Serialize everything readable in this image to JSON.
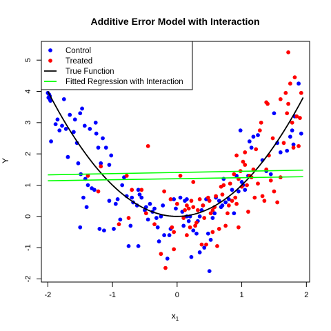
{
  "chart_data": {
    "type": "scatter",
    "title": "Additive Error Model with Interaction",
    "xlabel_main": "x",
    "xlabel_sub": "1",
    "ylabel": "Y",
    "xlim": [
      -2.1,
      2.05
    ],
    "ylim": [
      -2.1,
      5.6
    ],
    "xticks": [
      -2,
      -1,
      0,
      1,
      2
    ],
    "yticks": [
      -2,
      -1,
      0,
      1,
      2,
      3,
      4,
      5
    ],
    "grid": false,
    "legend_position": "top-left",
    "legend": [
      {
        "label": "Control",
        "kind": "point",
        "color": "#0000ff"
      },
      {
        "label": "Treated",
        "kind": "point",
        "color": "#ff0000"
      },
      {
        "label": "True Function",
        "kind": "line",
        "color": "#000000"
      },
      {
        "label": "Fitted Regression with Interaction",
        "kind": "line",
        "color": "#00ff00"
      }
    ],
    "series": [
      {
        "name": "Control",
        "color": "#0000ff",
        "points": [
          [
            -2.0,
            3.95
          ],
          [
            -1.99,
            3.8
          ],
          [
            -1.98,
            3.9
          ],
          [
            -1.97,
            3.75
          ],
          [
            -1.96,
            3.7
          ],
          [
            -1.97,
            3.85
          ],
          [
            -1.95,
            2.4
          ],
          [
            -1.88,
            2.95
          ],
          [
            -1.85,
            3.1
          ],
          [
            -1.82,
            2.75
          ],
          [
            -1.78,
            2.9
          ],
          [
            -1.75,
            3.75
          ],
          [
            -1.72,
            2.8
          ],
          [
            -1.69,
            1.9
          ],
          [
            -1.66,
            3.25
          ],
          [
            -1.6,
            2.7
          ],
          [
            -1.58,
            3.1
          ],
          [
            -1.55,
            2.35
          ],
          [
            -1.53,
            1.7
          ],
          [
            -1.5,
            -0.35
          ],
          [
            -1.5,
            3.3
          ],
          [
            -1.49,
            1.35
          ],
          [
            -1.47,
            3.45
          ],
          [
            -1.45,
            0.6
          ],
          [
            -1.43,
            2.9
          ],
          [
            -1.42,
            1.2
          ],
          [
            -1.4,
            0.3
          ],
          [
            -1.38,
            1.0
          ],
          [
            -1.35,
            2.8
          ],
          [
            -1.32,
            0.9
          ],
          [
            -1.28,
            0.85
          ],
          [
            -1.26,
            3.0
          ],
          [
            -1.25,
            2.65
          ],
          [
            -1.22,
            2.2
          ],
          [
            -1.2,
            -0.4
          ],
          [
            -1.18,
            1.7
          ],
          [
            -1.15,
            2.5
          ],
          [
            -1.13,
            -0.45
          ],
          [
            -1.1,
            2.2
          ],
          [
            -1.05,
            1.65
          ],
          [
            -1.05,
            0.5
          ],
          [
            -1.02,
            1.95
          ],
          [
            -0.98,
            -0.4
          ],
          [
            -0.95,
            0.4
          ],
          [
            -0.92,
            0.55
          ],
          [
            -0.88,
            -0.1
          ],
          [
            -0.85,
            1.0
          ],
          [
            -0.82,
            1.25
          ],
          [
            -0.78,
            0.65
          ],
          [
            -0.75,
            -0.95
          ],
          [
            -0.72,
            -0.3
          ],
          [
            -0.7,
            0.6
          ],
          [
            -0.68,
            0.45
          ],
          [
            -0.62,
            0.35
          ],
          [
            -0.6,
            -0.95
          ],
          [
            -0.58,
            0.7
          ],
          [
            -0.55,
            0.6
          ],
          [
            -0.5,
            0.2
          ],
          [
            -0.48,
            0.3
          ],
          [
            -0.45,
            -0.1
          ],
          [
            -0.42,
            0.4
          ],
          [
            -0.38,
            0.15
          ],
          [
            -0.35,
            0.25
          ],
          [
            -0.32,
            -0.05
          ],
          [
            -0.3,
            -0.35
          ],
          [
            -0.28,
            -0.8
          ],
          [
            -0.25,
            0.0
          ],
          [
            -0.22,
            0.35
          ],
          [
            -0.2,
            -0.6
          ],
          [
            -0.15,
            -1.35
          ],
          [
            -0.12,
            -0.6
          ],
          [
            -0.1,
            -0.4
          ],
          [
            -0.05,
            0.55
          ],
          [
            -0.02,
            0.25
          ],
          [
            0.05,
            0.6
          ],
          [
            0.08,
            0.15
          ],
          [
            0.1,
            -0.3
          ],
          [
            0.12,
            0.5
          ],
          [
            0.15,
            0.0
          ],
          [
            0.18,
            -0.15
          ],
          [
            0.2,
            0.0
          ],
          [
            0.22,
            -1.3
          ],
          [
            0.25,
            -0.45
          ],
          [
            0.3,
            -0.55
          ],
          [
            0.32,
            -0.15
          ],
          [
            0.35,
            -1.15
          ],
          [
            0.38,
            0.2
          ],
          [
            0.4,
            0.35
          ],
          [
            0.42,
            -1.0
          ],
          [
            0.45,
            0.55
          ],
          [
            0.48,
            -0.55
          ],
          [
            0.5,
            -1.75
          ],
          [
            0.52,
            -0.75
          ],
          [
            0.55,
            -0.05
          ],
          [
            0.58,
            0.1
          ],
          [
            0.6,
            0.6
          ],
          [
            0.65,
            0.5
          ],
          [
            0.68,
            0.3
          ],
          [
            0.7,
            0.35
          ],
          [
            0.72,
            1.2
          ],
          [
            0.75,
            0.45
          ],
          [
            0.8,
            0.55
          ],
          [
            0.85,
            0.85
          ],
          [
            0.88,
            0.1
          ],
          [
            0.92,
            1.3
          ],
          [
            0.95,
            0.8
          ],
          [
            0.98,
            2.75
          ],
          [
            1.0,
            1.1
          ],
          [
            1.02,
            1.0
          ],
          [
            1.05,
            0.85
          ],
          [
            1.1,
            1.3
          ],
          [
            1.12,
            2.4
          ],
          [
            1.15,
            2.2
          ],
          [
            1.18,
            2.55
          ],
          [
            1.25,
            2.6
          ],
          [
            1.32,
            1.8
          ],
          [
            1.38,
            1.45
          ],
          [
            1.45,
            1.35
          ],
          [
            1.55,
            2.35
          ],
          [
            1.6,
            2.05
          ],
          [
            1.7,
            2.1
          ],
          [
            1.75,
            2.55
          ],
          [
            1.78,
            2.75
          ],
          [
            1.8,
            2.3
          ],
          [
            1.82,
            3.2
          ],
          [
            1.88,
            4.25
          ],
          [
            1.92,
            2.65
          ],
          [
            0.15,
            0.55
          ],
          [
            -0.6,
            0.85
          ],
          [
            0.35,
            0.0
          ],
          [
            1.5,
            3.3
          ]
        ]
      },
      {
        "name": "Treated",
        "color": "#ff0000",
        "points": [
          [
            -1.38,
            1.3
          ],
          [
            -1.22,
            0.8
          ],
          [
            -1.18,
            1.6
          ],
          [
            -0.9,
            -0.25
          ],
          [
            -0.78,
            1.3
          ],
          [
            -0.75,
            -0.05
          ],
          [
            -0.7,
            0.85
          ],
          [
            -0.55,
            0.85
          ],
          [
            -0.48,
            0.1
          ],
          [
            -0.45,
            2.25
          ],
          [
            -0.35,
            -0.25
          ],
          [
            -0.25,
            -1.2
          ],
          [
            -0.2,
            0.8
          ],
          [
            -0.18,
            -1.65
          ],
          [
            -0.1,
            0.55
          ],
          [
            -0.08,
            -0.35
          ],
          [
            -0.05,
            -0.5
          ],
          [
            0.0,
            0.4
          ],
          [
            0.05,
            1.3
          ],
          [
            0.1,
            -0.05
          ],
          [
            0.12,
            0.2
          ],
          [
            0.15,
            0.35
          ],
          [
            0.18,
            0.25
          ],
          [
            0.2,
            -0.35
          ],
          [
            0.22,
            0.5
          ],
          [
            0.25,
            0.3
          ],
          [
            0.28,
            -0.3
          ],
          [
            0.3,
            -0.2
          ],
          [
            0.32,
            0.2
          ],
          [
            0.35,
            0.55
          ],
          [
            0.38,
            -0.9
          ],
          [
            0.4,
            0.35
          ],
          [
            0.42,
            -0.05
          ],
          [
            0.45,
            -0.9
          ],
          [
            0.48,
            0.6
          ],
          [
            0.5,
            0.5
          ],
          [
            0.52,
            0.1
          ],
          [
            0.55,
            -0.5
          ],
          [
            0.58,
            0.3
          ],
          [
            0.6,
            0.65
          ],
          [
            0.62,
            -0.95
          ],
          [
            0.65,
            -0.4
          ],
          [
            0.7,
            0.7
          ],
          [
            0.72,
            1.0
          ],
          [
            0.75,
            -0.3
          ],
          [
            0.78,
            0.1
          ],
          [
            0.8,
            0.35
          ],
          [
            0.82,
            1.05
          ],
          [
            0.85,
            0.5
          ],
          [
            0.88,
            1.35
          ],
          [
            0.9,
            0.6
          ],
          [
            0.92,
            0.4
          ],
          [
            0.92,
            1.95
          ],
          [
            0.95,
            -0.35
          ],
          [
            0.95,
            1.2
          ],
          [
            0.98,
            1.45
          ],
          [
            1.0,
            0.95
          ],
          [
            1.02,
            1.75
          ],
          [
            1.05,
            2.05
          ],
          [
            1.08,
            1.0
          ],
          [
            1.1,
            0.15
          ],
          [
            1.12,
            1.3
          ],
          [
            1.15,
            1.25
          ],
          [
            1.18,
            1.5
          ],
          [
            1.2,
            0.6
          ],
          [
            1.22,
            2.15
          ],
          [
            1.25,
            1.05
          ],
          [
            1.28,
            2.75
          ],
          [
            1.3,
            3.0
          ],
          [
            1.32,
            0.65
          ],
          [
            1.35,
            0.5
          ],
          [
            1.38,
            3.65
          ],
          [
            1.4,
            3.6
          ],
          [
            1.42,
            1.95
          ],
          [
            1.45,
            1.15
          ],
          [
            1.48,
            2.5
          ],
          [
            1.5,
            0.8
          ],
          [
            1.55,
            0.45
          ],
          [
            1.6,
            3.75
          ],
          [
            1.65,
            2.35
          ],
          [
            1.68,
            3.95
          ],
          [
            1.7,
            3.3
          ],
          [
            1.72,
            3.6
          ],
          [
            1.72,
            5.25
          ],
          [
            1.75,
            4.25
          ],
          [
            1.78,
            3.0
          ],
          [
            1.8,
            2.2
          ],
          [
            1.82,
            4.45
          ],
          [
            1.85,
            3.2
          ],
          [
            1.88,
            2.25
          ],
          [
            1.9,
            3.15
          ],
          [
            1.92,
            3.95
          ],
          [
            0.25,
            1.1
          ],
          [
            0.68,
            0.95
          ],
          [
            -0.05,
            -1.05
          ],
          [
            0.55,
            0.2
          ],
          [
            1.05,
            1.65
          ],
          [
            0.15,
            -0.6
          ],
          [
            1.38,
            1.5
          ],
          [
            1.6,
            1.25
          ]
        ]
      }
    ],
    "lines": [
      {
        "name": "True Function",
        "color": "#000000",
        "function": "x^2",
        "x_range": [
          -2,
          1.95
        ]
      },
      {
        "name": "Fitted Regression with Interaction (Control)",
        "color": "#00ff00",
        "endpoints": [
          [
            -2.0,
            1.14
          ],
          [
            1.95,
            1.27
          ]
        ]
      },
      {
        "name": "Fitted Regression with Interaction (Treated)",
        "color": "#00ff00",
        "endpoints": [
          [
            -2.0,
            1.33
          ],
          [
            1.95,
            1.48
          ]
        ]
      }
    ]
  }
}
